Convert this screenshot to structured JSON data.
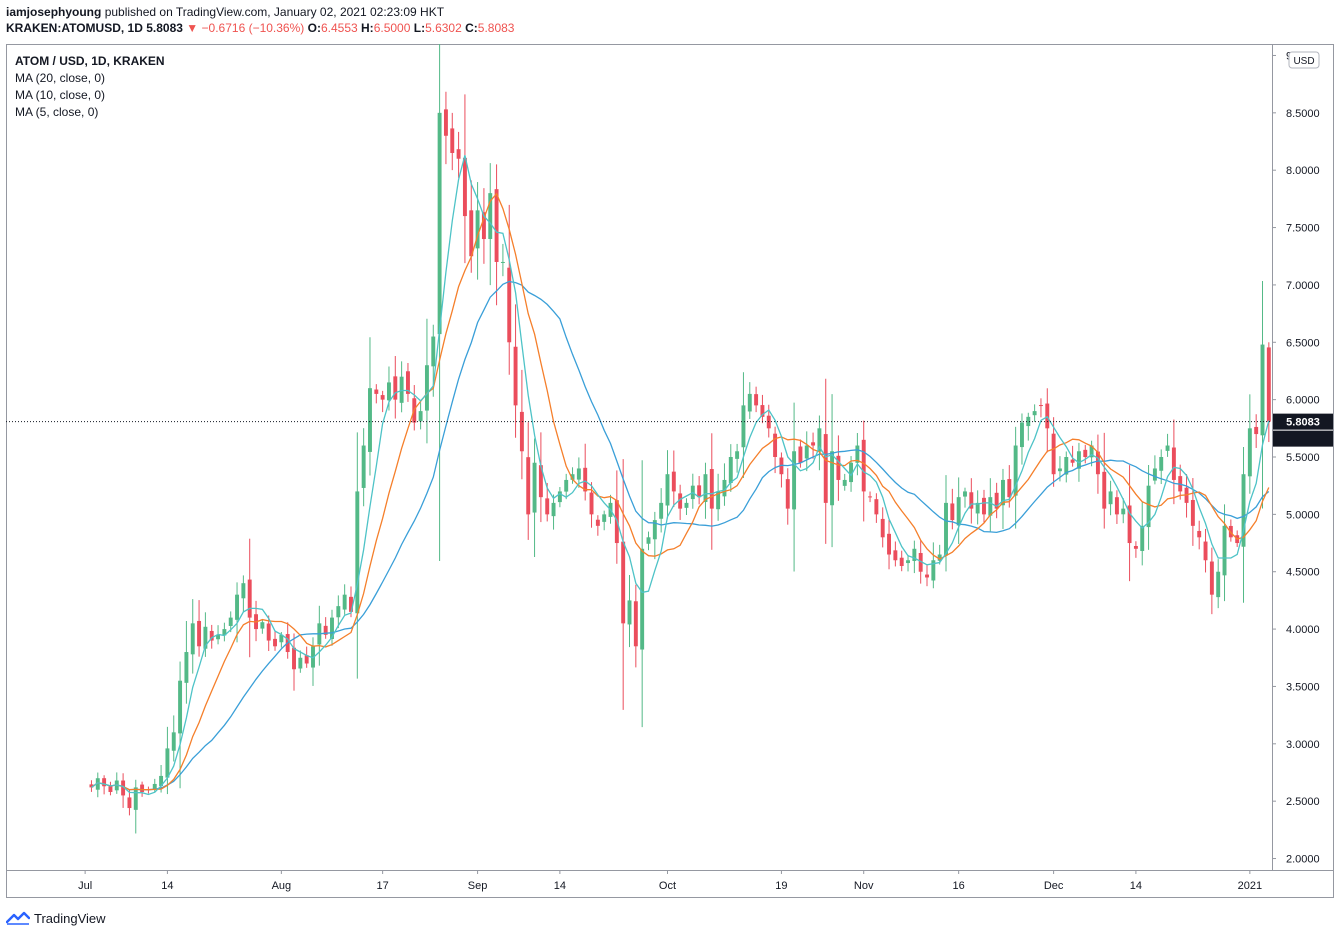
{
  "header": {
    "author": "iamjosephyoung",
    "published": "published on TradingView.com, January 02, 2021 02:23:09 HKT",
    "symbol": "KRAKEN:ATOMUSD, 1D",
    "last": "5.8083",
    "arrow": "▼",
    "change": "−0.6716 (−10.36%)",
    "o_label": "O:",
    "o": "6.4553",
    "h_label": "H:",
    "h": "6.5000",
    "l_label": "L:",
    "l": "5.6302",
    "c_label": "C:",
    "c": "5.8083"
  },
  "legend": {
    "title": "ATOM / USD, 1D, KRAKEN",
    "ma20": "MA (20, close, 0)",
    "ma10": "MA (10, close, 0)",
    "ma5": "MA (5, close, 0)"
  },
  "footer": {
    "brand": "TradingView"
  },
  "colors": {
    "up": "#53b987",
    "down": "#eb4d5c",
    "ma5": "#4ec3c7",
    "ma10": "#f57f2b",
    "ma20": "#3a9fd8",
    "axis": "#131722",
    "grid": "#e0e3eb"
  },
  "chart_data": {
    "type": "candlestick",
    "title": "ATOM / USD, 1D, KRAKEN",
    "currency_label": "USD",
    "ylim": [
      1.9,
      9.1
    ],
    "y_ticks": [
      "2.0000",
      "2.5000",
      "3.0000",
      "3.5000",
      "4.0000",
      "4.5000",
      "5.0000",
      "5.5000",
      "6.0000",
      "6.5000",
      "7.0000",
      "7.5000",
      "8.0000",
      "8.5000",
      "9.0000"
    ],
    "x_start_date": "2020-06-19",
    "x_days": 200,
    "x_ticks": [
      {
        "label": "Jul",
        "date": "2020-07-01"
      },
      {
        "label": "14",
        "date": "2020-07-14"
      },
      {
        "label": "Aug",
        "date": "2020-08-01"
      },
      {
        "label": "17",
        "date": "2020-08-17"
      },
      {
        "label": "Sep",
        "date": "2020-09-01"
      },
      {
        "label": "14",
        "date": "2020-09-14"
      },
      {
        "label": "Oct",
        "date": "2020-10-01"
      },
      {
        "label": "19",
        "date": "2020-10-19"
      },
      {
        "label": "Nov",
        "date": "2020-11-01"
      },
      {
        "label": "16",
        "date": "2020-11-16"
      },
      {
        "label": "Dec",
        "date": "2020-12-01"
      },
      {
        "label": "14",
        "date": "2020-12-14"
      },
      {
        "label": "2021",
        "date": "2021-01-01"
      }
    ],
    "closes": [
      2.62,
      2.7,
      2.63,
      2.58,
      2.68,
      2.55,
      2.44,
      2.62,
      2.58,
      2.6,
      2.65,
      2.72,
      2.96,
      3.1,
      3.55,
      3.8,
      4.05,
      3.85,
      4.02,
      3.9,
      3.95,
      4.0,
      4.1,
      4.3,
      4.4,
      4.1,
      4.0,
      4.06,
      3.9,
      3.85,
      3.95,
      3.8,
      3.65,
      3.75,
      3.7,
      3.85,
      4.05,
      3.95,
      4.1,
      4.2,
      4.3,
      4.15,
      5.2,
      5.6,
      6.1,
      6.05,
      6.0,
      6.15,
      6.0,
      6.2,
      6.05,
      5.8,
      5.9,
      6.3,
      6.55,
      8.5,
      8.3,
      8.15,
      8.1,
      7.6,
      7.25,
      7.65,
      7.4,
      7.8,
      7.2,
      7.2,
      6.5,
      5.95,
      5.55,
      5.0,
      5.45,
      5.15,
      5.0,
      5.1,
      5.2,
      5.3,
      5.35,
      5.4,
      5.2,
      5.0,
      4.9,
      5.0,
      5.1,
      4.75,
      4.05,
      4.25,
      3.85,
      4.7,
      4.8,
      4.95,
      5.1,
      5.35,
      5.2,
      5.05,
      5.1,
      5.25,
      5.15,
      5.35,
      5.05,
      5.2,
      5.3,
      5.5,
      5.55,
      5.95,
      6.05,
      5.95,
      5.85,
      5.75,
      5.5,
      5.35,
      5.05,
      5.55,
      5.45,
      5.6,
      5.6,
      5.75,
      5.1,
      5.55,
      5.3,
      5.3,
      5.45,
      5.6,
      5.2,
      5.15,
      5.0,
      4.8,
      4.65,
      4.6,
      4.55,
      4.6,
      4.7,
      4.5,
      4.45,
      4.6,
      4.65,
      5.1,
      4.95,
      5.15,
      5.2,
      5.05,
      5.1,
      5.0,
      5.15,
      5.05,
      5.3,
      5.15,
      5.6,
      5.8,
      5.85,
      5.9,
      5.95,
      5.75,
      5.35,
      5.4,
      5.5,
      5.45,
      5.55,
      5.5,
      5.6,
      5.35,
      5.05,
      5.2,
      5.0,
      5.05,
      4.75,
      4.7,
      4.9,
      5.25,
      5.4,
      5.5,
      5.6,
      5.3,
      5.2,
      5.1,
      4.9,
      4.8,
      4.6,
      4.3,
      4.5,
      4.9,
      4.8,
      4.75,
      5.35,
      5.75,
      5.7,
      6.48,
      5.8083
    ]
  }
}
